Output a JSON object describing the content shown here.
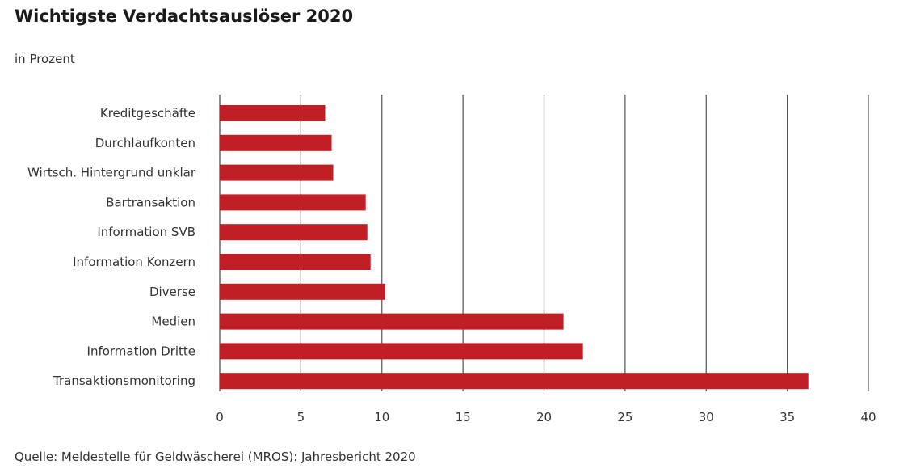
{
  "chart_data": {
    "type": "bar",
    "orientation": "horizontal",
    "title": "Wichtigste Verdachtsauslöser 2020",
    "subtitle": "in Prozent",
    "source": "Quelle: Meldestelle für Geldwäscherei (MROS): Jahresbericht 2020",
    "categories": [
      "Kreditgeschäfte",
      "Durchlaufkonten",
      "Wirtsch. Hintergrund unklar",
      "Bartransaktion",
      "Information SVB",
      "Information Konzern",
      "Diverse",
      "Medien",
      "Information Dritte",
      "Transaktionsmonitoring"
    ],
    "values": [
      6.5,
      6.9,
      7.0,
      9.0,
      9.1,
      9.3,
      10.2,
      21.2,
      22.4,
      36.3
    ],
    "xlim": [
      0,
      40
    ],
    "xticks": [
      "0",
      "5",
      "10",
      "15",
      "20",
      "25",
      "30",
      "35",
      "40"
    ],
    "grid": "vertical",
    "bar_color": "#c01f26"
  }
}
